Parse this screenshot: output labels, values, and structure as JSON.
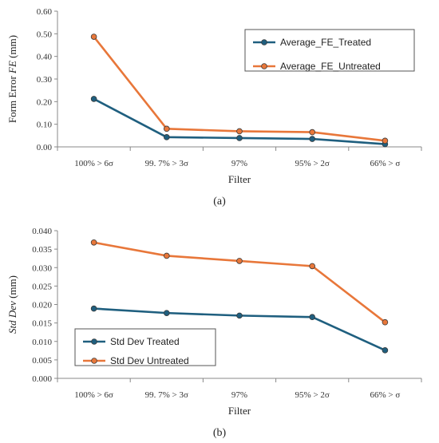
{
  "colors": {
    "treated": "#1f5f7f",
    "untreated": "#e8773a",
    "axis": "#888888",
    "legend_border": "#555555"
  },
  "chart_data": [
    {
      "type": "line",
      "caption": "(a)",
      "categories": [
        "100% > 6σ",
        "99. 7% > 3σ",
        "97%",
        "95% > 2σ",
        "66% > σ"
      ],
      "series": [
        {
          "name": "Average_FE_Treated",
          "values": [
            0.212,
            0.043,
            0.039,
            0.035,
            0.012
          ]
        },
        {
          "name": "Average_FE_Untreated",
          "values": [
            0.487,
            0.08,
            0.069,
            0.065,
            0.027
          ]
        }
      ],
      "xlabel": "Filter",
      "ylabel_prefix": "Form Error ",
      "ylabel_italic": "FE",
      "ylabel_suffix": "  (mm)",
      "ylim": [
        0,
        0.6
      ],
      "yticks": [
        "0.00",
        "0.10",
        "0.20",
        "0.30",
        "0.40",
        "0.50",
        "0.60"
      ],
      "legend": "top-right",
      "grid": false
    },
    {
      "type": "line",
      "caption": "(b)",
      "categories": [
        "100% > 6σ",
        "99. 7% > 3σ",
        "97%",
        "95% > 2σ",
        "66% > σ"
      ],
      "series": [
        {
          "name": "Std Dev Treated",
          "values": [
            0.0189,
            0.0177,
            0.017,
            0.0166,
            0.0076
          ]
        },
        {
          "name": "Std Dev Untreated",
          "values": [
            0.0368,
            0.0332,
            0.0318,
            0.0304,
            0.0152
          ]
        }
      ],
      "xlabel": "Filter",
      "ylabel_prefix": "",
      "ylabel_italic": "Std Dev",
      "ylabel_suffix": " (mm)",
      "ylim": [
        0,
        0.04
      ],
      "yticks": [
        "0.000",
        "0.005",
        "0.010",
        "0.015",
        "0.020",
        "0.025",
        "0.030",
        "0.035",
        "0.040"
      ],
      "legend": "bottom-left",
      "grid": false
    }
  ]
}
